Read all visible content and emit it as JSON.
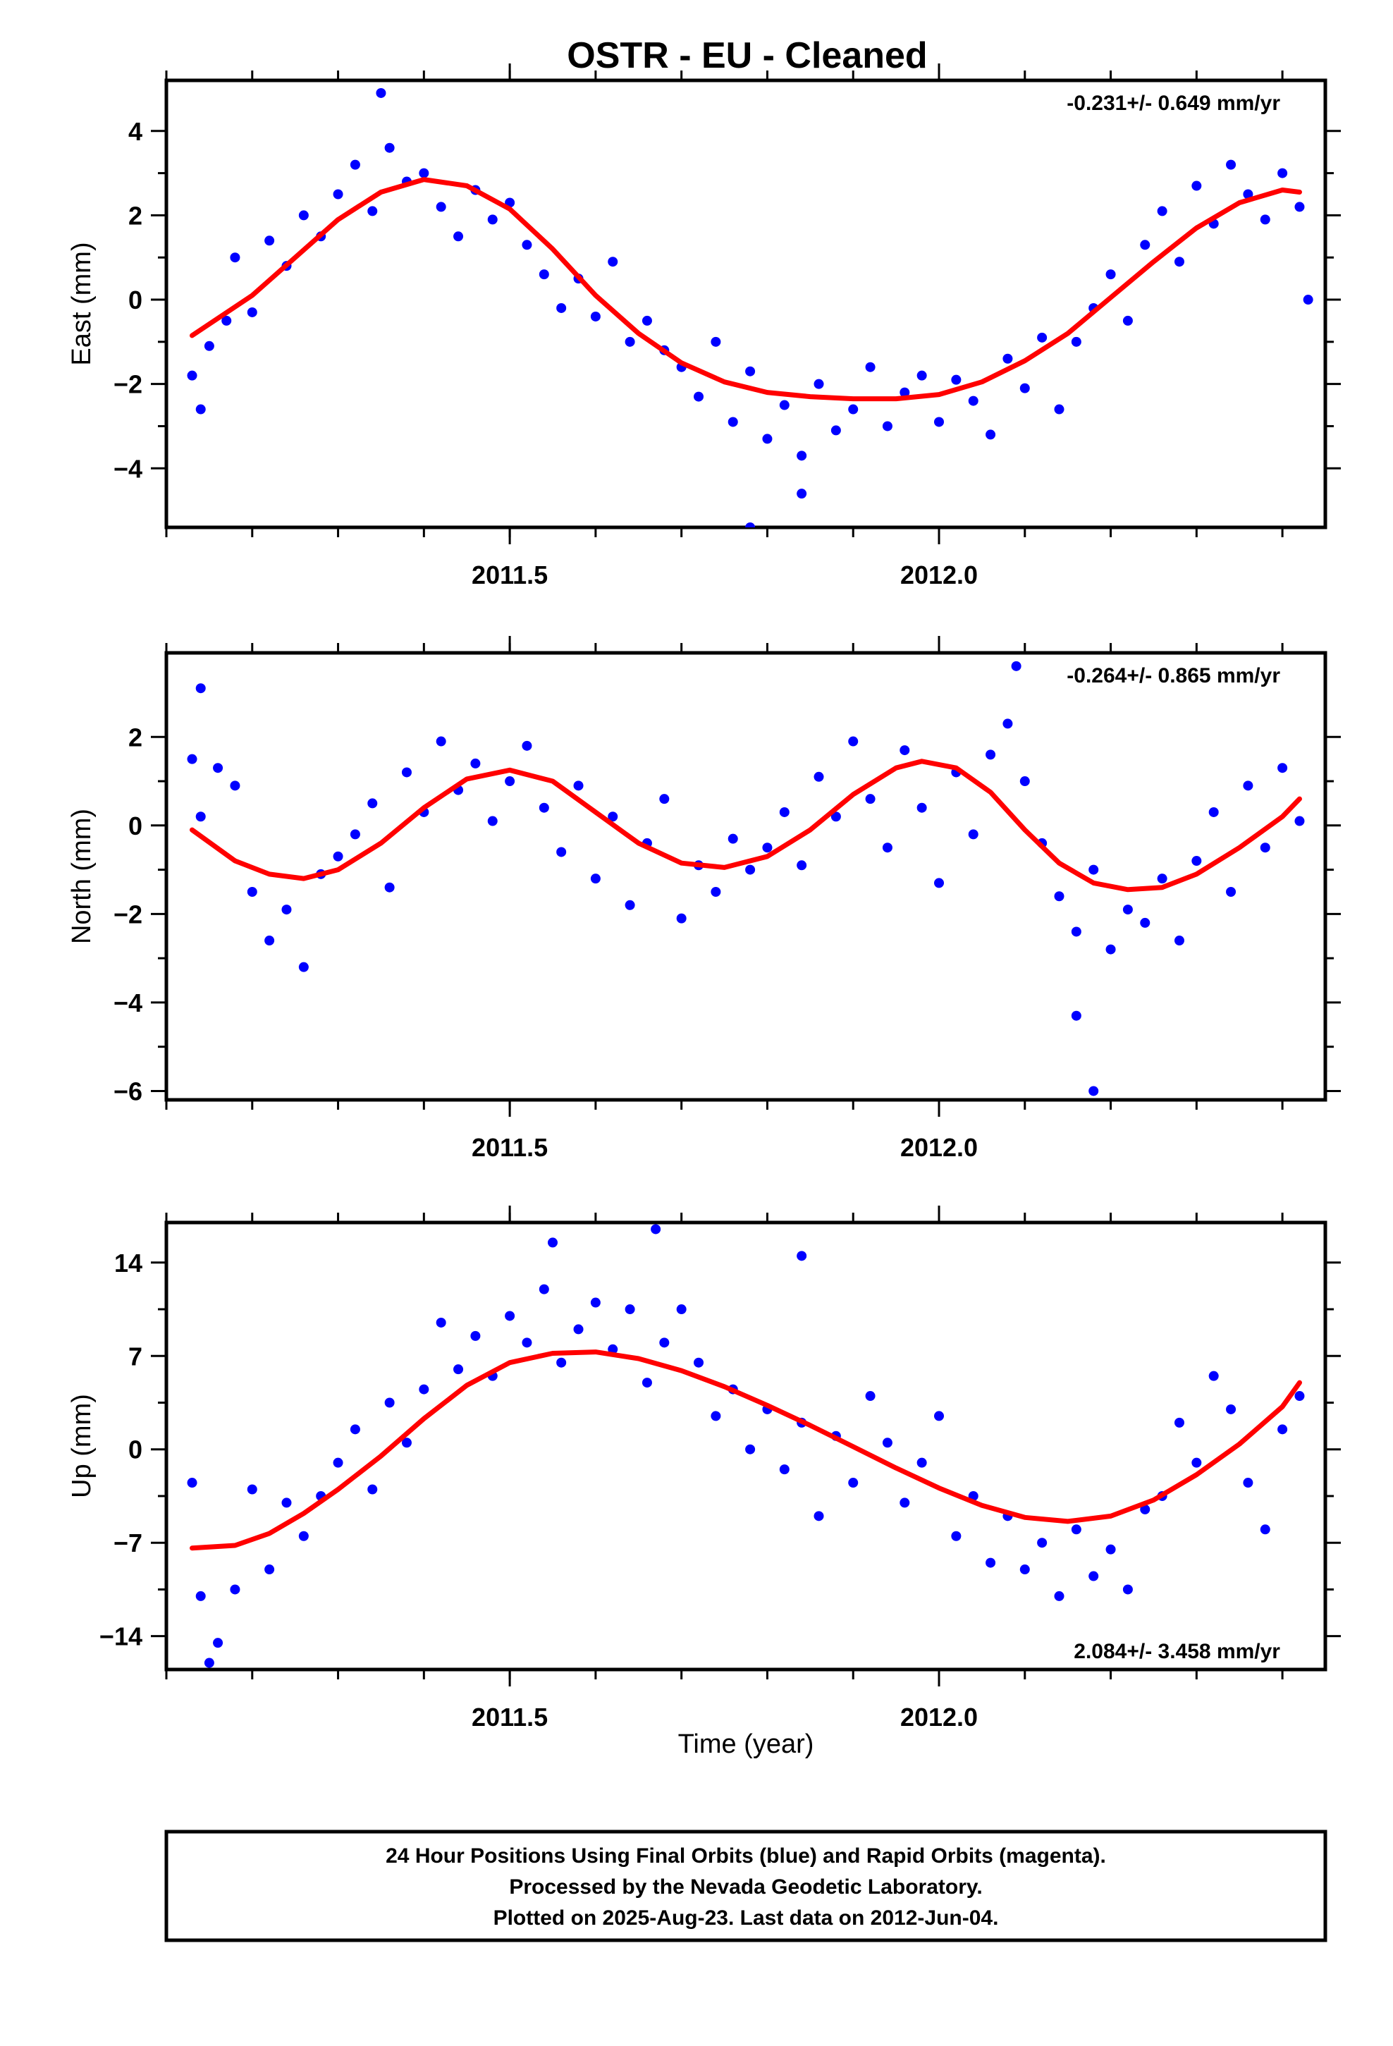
{
  "title": "OSTR  - EU - Cleaned",
  "xlabel": "Time (year)",
  "footer": [
    "24 Hour Positions Using Final Orbits (blue) and Rapid Orbits (magenta).",
    "Processed by the Nevada Geodetic Laboratory.",
    "Plotted on 2025-Aug-23. Last data on 2012-Jun-04."
  ],
  "colors": {
    "points": "#0000ff",
    "fit": "#ff0000",
    "frame": "#000000"
  },
  "chart_data": [
    {
      "type": "scatter",
      "component": "east",
      "ylabel": "East (mm)",
      "rate": "-0.231+/- 0.649 mm/yr",
      "xlim": [
        2011.1,
        2012.45
      ],
      "ylim": [
        -5.4,
        5.2
      ],
      "xticks": [
        2011.5,
        2012.0
      ],
      "xtick_labels": [
        "2011.5",
        "2012.0"
      ],
      "yticks": [
        -4,
        -2,
        0,
        2,
        4
      ],
      "ytick_labels": [
        "−4",
        "−2",
        "0",
        "2",
        "4"
      ],
      "grid": false,
      "fit_curve": {
        "x": [
          2011.13,
          2011.2,
          2011.25,
          2011.3,
          2011.35,
          2011.4,
          2011.45,
          2011.5,
          2011.55,
          2011.6,
          2011.65,
          2011.7,
          2011.75,
          2011.8,
          2011.85,
          2011.9,
          2011.95,
          2012.0,
          2012.05,
          2012.1,
          2012.15,
          2012.2,
          2012.25,
          2012.3,
          2012.35,
          2012.4,
          2012.42
        ],
        "y": [
          -0.85,
          0.1,
          1.0,
          1.9,
          2.55,
          2.85,
          2.7,
          2.15,
          1.2,
          0.1,
          -0.8,
          -1.5,
          -1.95,
          -2.2,
          -2.3,
          -2.35,
          -2.35,
          -2.25,
          -1.95,
          -1.45,
          -0.8,
          0.05,
          0.9,
          1.7,
          2.3,
          2.6,
          2.55
        ]
      },
      "points": {
        "x": [
          2011.13,
          2011.14,
          2011.15,
          2011.17,
          2011.18,
          2011.2,
          2011.22,
          2011.24,
          2011.26,
          2011.28,
          2011.3,
          2011.32,
          2011.34,
          2011.36,
          2011.38,
          2011.4,
          2011.42,
          2011.44,
          2011.46,
          2011.48,
          2011.5,
          2011.52,
          2011.54,
          2011.56,
          2011.58,
          2011.6,
          2011.62,
          2011.64,
          2011.66,
          2011.68,
          2011.7,
          2011.72,
          2011.74,
          2011.76,
          2011.78,
          2011.8,
          2011.82,
          2011.84,
          2011.86,
          2011.88,
          2011.9,
          2011.92,
          2011.94,
          2011.96,
          2011.98,
          2012.0,
          2012.02,
          2012.04,
          2012.06,
          2012.08,
          2012.1,
          2012.12,
          2012.14,
          2012.16,
          2012.18,
          2012.2,
          2012.22,
          2012.24,
          2012.26,
          2012.28,
          2012.3,
          2012.32,
          2012.34,
          2012.36,
          2012.38,
          2012.4,
          2012.42,
          2011.35,
          2011.78,
          2011.84,
          2012.43
        ],
        "y": [
          -1.8,
          -2.6,
          -1.1,
          -0.5,
          1.0,
          -0.3,
          1.4,
          0.8,
          2.0,
          1.5,
          2.5,
          3.2,
          2.1,
          3.6,
          2.8,
          3.0,
          2.2,
          1.5,
          2.6,
          1.9,
          2.3,
          1.3,
          0.6,
          -0.2,
          0.5,
          -0.4,
          0.9,
          -1.0,
          -0.5,
          -1.2,
          -1.6,
          -2.3,
          -1.0,
          -2.9,
          -1.7,
          -3.3,
          -2.5,
          -3.7,
          -2.0,
          -3.1,
          -2.6,
          -1.6,
          -3.0,
          -2.2,
          -1.8,
          -2.9,
          -1.9,
          -2.4,
          -3.2,
          -1.4,
          -2.1,
          -0.9,
          -2.6,
          -1.0,
          -0.2,
          0.6,
          -0.5,
          1.3,
          2.1,
          0.9,
          2.7,
          1.8,
          3.2,
          2.5,
          1.9,
          3.0,
          2.2,
          4.9,
          -5.4,
          -4.6,
          0.0
        ]
      }
    },
    {
      "type": "scatter",
      "component": "north",
      "ylabel": "North (mm)",
      "rate": "-0.264+/- 0.865 mm/yr",
      "xlim": [
        2011.1,
        2012.45
      ],
      "ylim": [
        -6.2,
        3.9
      ],
      "xticks": [
        2011.5,
        2012.0
      ],
      "xtick_labels": [
        "2011.5",
        "2012.0"
      ],
      "yticks": [
        -6,
        -4,
        -2,
        0,
        2
      ],
      "ytick_labels": [
        "−6",
        "−4",
        "−2",
        "0",
        "2"
      ],
      "grid": false,
      "fit_curve": {
        "x": [
          2011.13,
          2011.18,
          2011.22,
          2011.26,
          2011.3,
          2011.35,
          2011.4,
          2011.45,
          2011.5,
          2011.55,
          2011.6,
          2011.65,
          2011.7,
          2011.75,
          2011.8,
          2011.85,
          2011.9,
          2011.95,
          2011.98,
          2012.02,
          2012.06,
          2012.1,
          2012.14,
          2012.18,
          2012.22,
          2012.26,
          2012.3,
          2012.35,
          2012.4,
          2012.42
        ],
        "y": [
          -0.1,
          -0.8,
          -1.1,
          -1.2,
          -1.0,
          -0.4,
          0.4,
          1.05,
          1.25,
          1.0,
          0.3,
          -0.4,
          -0.85,
          -0.95,
          -0.7,
          -0.1,
          0.7,
          1.3,
          1.45,
          1.3,
          0.75,
          -0.1,
          -0.85,
          -1.3,
          -1.45,
          -1.4,
          -1.1,
          -0.5,
          0.2,
          0.6
        ]
      },
      "points": {
        "x": [
          2011.13,
          2011.14,
          2011.16,
          2011.18,
          2011.2,
          2011.22,
          2011.24,
          2011.26,
          2011.28,
          2011.3,
          2011.32,
          2011.34,
          2011.36,
          2011.38,
          2011.4,
          2011.42,
          2011.44,
          2011.46,
          2011.48,
          2011.5,
          2011.52,
          2011.54,
          2011.56,
          2011.58,
          2011.6,
          2011.62,
          2011.64,
          2011.66,
          2011.68,
          2011.7,
          2011.72,
          2011.74,
          2011.76,
          2011.78,
          2011.8,
          2011.82,
          2011.84,
          2011.86,
          2011.88,
          2011.9,
          2011.92,
          2011.94,
          2011.96,
          2011.98,
          2012.0,
          2012.02,
          2012.04,
          2012.06,
          2012.08,
          2012.1,
          2012.12,
          2012.14,
          2012.16,
          2012.18,
          2012.2,
          2012.22,
          2012.24,
          2012.26,
          2012.28,
          2012.3,
          2012.32,
          2012.34,
          2012.36,
          2012.38,
          2012.4,
          2012.42,
          2011.14,
          2012.09,
          2012.18,
          2012.16
        ],
        "y": [
          1.5,
          0.2,
          1.3,
          0.9,
          -1.5,
          -2.6,
          -1.9,
          -3.2,
          -1.1,
          -0.7,
          -0.2,
          0.5,
          -1.4,
          1.2,
          0.3,
          1.9,
          0.8,
          1.4,
          0.1,
          1.0,
          1.8,
          0.4,
          -0.6,
          0.9,
          -1.2,
          0.2,
          -1.8,
          -0.4,
          0.6,
          -2.1,
          -0.9,
          -1.5,
          -0.3,
          -1.0,
          -0.5,
          0.3,
          -0.9,
          1.1,
          0.2,
          1.9,
          0.6,
          -0.5,
          1.7,
          0.4,
          -1.3,
          1.2,
          -0.2,
          1.6,
          2.3,
          1.0,
          -0.4,
          -1.6,
          -2.4,
          -1.0,
          -2.8,
          -1.9,
          -2.2,
          -1.2,
          -2.6,
          -0.8,
          0.3,
          -1.5,
          0.9,
          -0.5,
          1.3,
          0.1,
          3.1,
          3.6,
          -6.0,
          -4.3
        ]
      }
    },
    {
      "type": "scatter",
      "component": "up",
      "ylabel": "Up (mm)",
      "rate": "2.084+/- 3.458 mm/yr",
      "xlim": [
        2011.1,
        2012.45
      ],
      "ylim": [
        -16.5,
        17.0
      ],
      "xticks": [
        2011.5,
        2012.0
      ],
      "xtick_labels": [
        "2011.5",
        "2012.0"
      ],
      "yticks": [
        -14,
        -7,
        0,
        7,
        14
      ],
      "ytick_labels": [
        "−14",
        "−7",
        "0",
        "7",
        "14"
      ],
      "grid": false,
      "fit_curve": {
        "x": [
          2011.13,
          2011.18,
          2011.22,
          2011.26,
          2011.3,
          2011.35,
          2011.4,
          2011.45,
          2011.5,
          2011.55,
          2011.6,
          2011.65,
          2011.7,
          2011.75,
          2011.8,
          2011.85,
          2011.9,
          2011.95,
          2012.0,
          2012.05,
          2012.1,
          2012.15,
          2012.2,
          2012.25,
          2012.3,
          2012.35,
          2012.4,
          2012.42
        ],
        "y": [
          -7.4,
          -7.2,
          -6.3,
          -4.8,
          -3.0,
          -0.5,
          2.3,
          4.8,
          6.5,
          7.2,
          7.3,
          6.8,
          5.9,
          4.7,
          3.3,
          1.8,
          0.2,
          -1.4,
          -2.9,
          -4.2,
          -5.1,
          -5.4,
          -5.0,
          -3.8,
          -1.9,
          0.4,
          3.2,
          5.0
        ]
      },
      "points": {
        "x": [
          2011.13,
          2011.14,
          2011.16,
          2011.18,
          2011.2,
          2011.22,
          2011.24,
          2011.26,
          2011.28,
          2011.3,
          2011.32,
          2011.34,
          2011.36,
          2011.38,
          2011.4,
          2011.42,
          2011.44,
          2011.46,
          2011.48,
          2011.5,
          2011.52,
          2011.54,
          2011.56,
          2011.58,
          2011.6,
          2011.62,
          2011.64,
          2011.66,
          2011.68,
          2011.7,
          2011.72,
          2011.74,
          2011.76,
          2011.78,
          2011.8,
          2011.82,
          2011.84,
          2011.86,
          2011.88,
          2011.9,
          2011.92,
          2011.94,
          2011.96,
          2011.98,
          2012.0,
          2012.02,
          2012.04,
          2012.06,
          2012.08,
          2012.1,
          2012.12,
          2012.14,
          2012.16,
          2012.18,
          2012.2,
          2012.22,
          2012.24,
          2012.26,
          2012.28,
          2012.3,
          2012.32,
          2012.34,
          2012.36,
          2012.38,
          2012.4,
          2012.42,
          2011.55,
          2011.67,
          2011.84,
          2011.15
        ],
        "y": [
          -2.5,
          -11.0,
          -14.5,
          -10.5,
          -3.0,
          -9.0,
          -4.0,
          -6.5,
          -3.5,
          -1.0,
          1.5,
          -3.0,
          3.5,
          0.5,
          4.5,
          9.5,
          6.0,
          8.5,
          5.5,
          10.0,
          8.0,
          12.0,
          6.5,
          9.0,
          11.0,
          7.5,
          10.5,
          5.0,
          8.0,
          10.5,
          6.5,
          2.5,
          4.5,
          0.0,
          3.0,
          -1.5,
          2.0,
          -5.0,
          1.0,
          -2.5,
          4.0,
          0.5,
          -4.0,
          -1.0,
          2.5,
          -6.5,
          -3.5,
          -8.5,
          -5.0,
          -9.0,
          -7.0,
          -11.0,
          -6.0,
          -9.5,
          -7.5,
          -10.5,
          -4.5,
          -3.5,
          2.0,
          -1.0,
          5.5,
          3.0,
          -2.5,
          -6.0,
          1.5,
          4.0,
          15.5,
          16.5,
          14.5,
          -16.0
        ]
      }
    }
  ]
}
